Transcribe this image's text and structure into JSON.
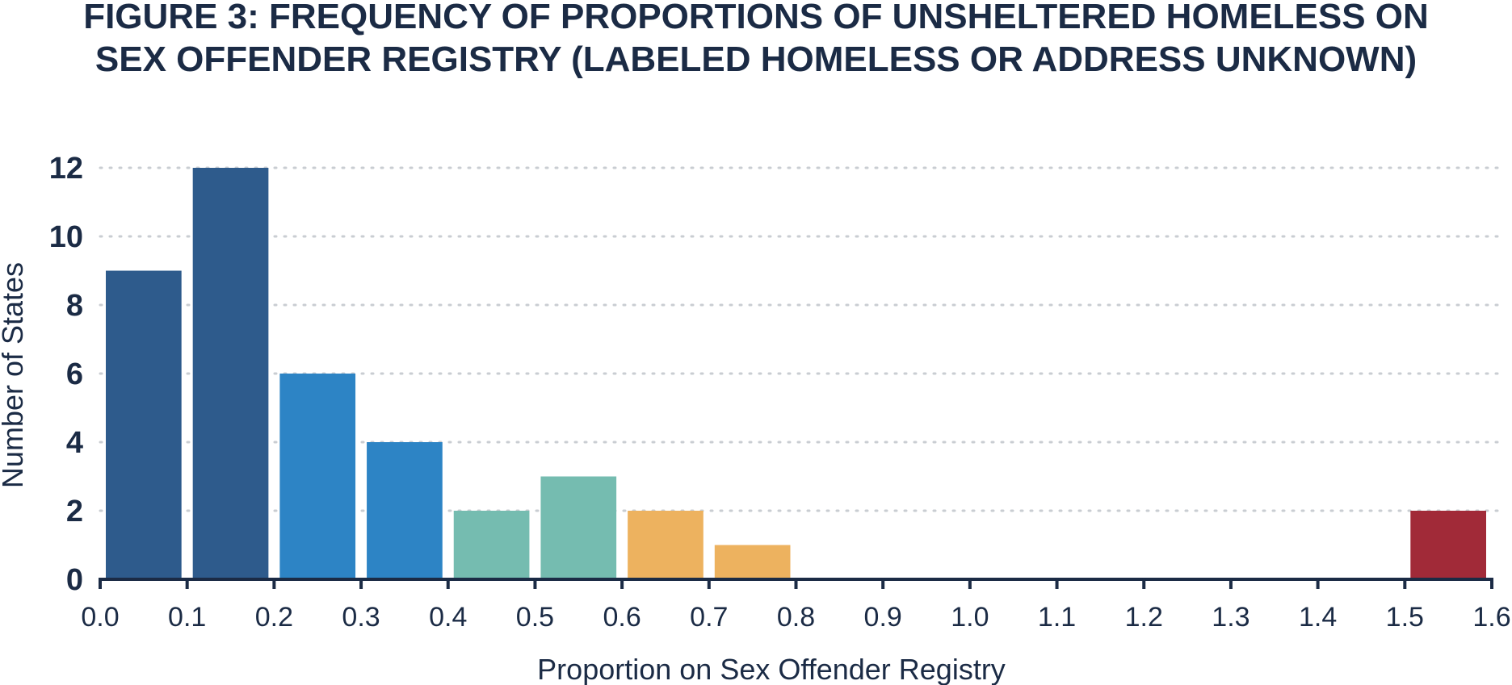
{
  "chart_data": {
    "type": "bar",
    "title": "FIGURE 3: FREQUENCY OF PROPORTIONS OF UNSHELTERED HOMELESS ON\nSEX OFFENDER REGISTRY (LABELED HOMELESS OR ADDRESS UNKNOWN)",
    "xlabel": "Proportion on Sex Offender Registry",
    "ylabel": "Number of States",
    "xlim": [
      0.0,
      1.6
    ],
    "ylim": [
      0,
      12
    ],
    "x_ticks": [
      "0.0",
      "0.1",
      "0.2",
      "0.3",
      "0.4",
      "0.5",
      "0.6",
      "0.7",
      "0.8",
      "0.9",
      "1.0",
      "1.1",
      "1.2",
      "1.3",
      "1.4",
      "1.5",
      "1.6"
    ],
    "y_ticks": [
      "0",
      "2",
      "4",
      "6",
      "8",
      "10",
      "12"
    ],
    "grid": "horizontal-dotted",
    "legend": "none",
    "bins": [
      {
        "start": 0.0,
        "end": 0.1,
        "value": 9,
        "color": "#2e5b8c"
      },
      {
        "start": 0.1,
        "end": 0.2,
        "value": 12,
        "color": "#2e5b8c"
      },
      {
        "start": 0.2,
        "end": 0.3,
        "value": 6,
        "color": "#2d84c5"
      },
      {
        "start": 0.3,
        "end": 0.4,
        "value": 4,
        "color": "#2d84c5"
      },
      {
        "start": 0.4,
        "end": 0.5,
        "value": 2,
        "color": "#75bcb0"
      },
      {
        "start": 0.5,
        "end": 0.6,
        "value": 3,
        "color": "#75bcb0"
      },
      {
        "start": 0.6,
        "end": 0.7,
        "value": 2,
        "color": "#edb25f"
      },
      {
        "start": 0.7,
        "end": 0.8,
        "value": 1,
        "color": "#edb25f"
      },
      {
        "start": 1.5,
        "end": 1.6,
        "value": 2,
        "color": "#a12a38"
      }
    ],
    "colors": {
      "text": "#1b2b45",
      "axis": "#1b2b45",
      "grid": "#c9cdd2"
    }
  }
}
